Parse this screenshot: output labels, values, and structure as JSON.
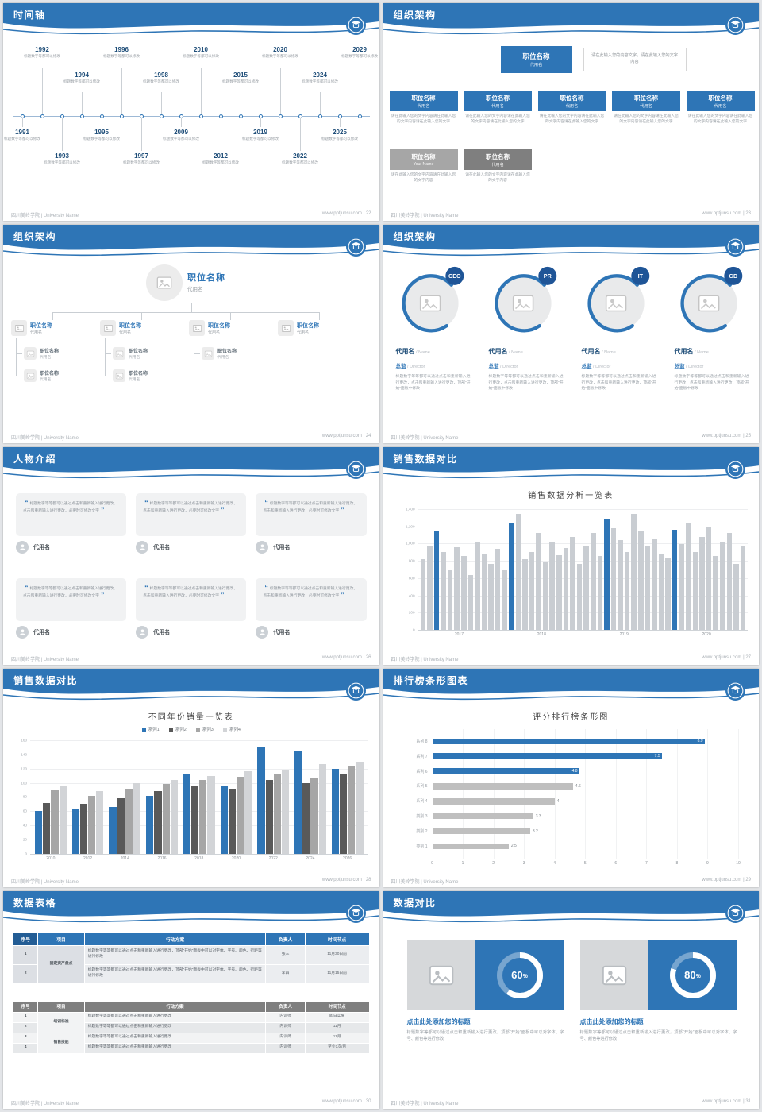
{
  "theme": {
    "accent_blue": "#2E75B6",
    "deep_blue": "#1F4E79",
    "badge_blue": "#1F5597",
    "bar_gray": "#C9CDD2",
    "mid_gray": "#7F7F7F",
    "soft_gray": "#A6A6A6",
    "dark_gray": "#595959",
    "light_gray": "#BFBFBF"
  },
  "footer": {
    "school": "四川美岭学院 | University Name",
    "site": "www.pptjunsu.com",
    "sep": " | "
  },
  "slides": {
    "timeline": {
      "title": "时间轴",
      "page": "22",
      "caption": "标题数字等都可以修改",
      "top_years": [
        "1992",
        "1994",
        "1996",
        "1998",
        "2010",
        "2015",
        "2020",
        "2024",
        "2029"
      ],
      "bottom_years": [
        "1991",
        "1993",
        "1995",
        "1997",
        "2009",
        "2012",
        "2019",
        "2022",
        "2025"
      ]
    },
    "org_boxes": {
      "title": "组织架构",
      "page": "23",
      "root": {
        "name": "职位名称",
        "sub": "代用名"
      },
      "root_note": "请在此输入您的内容文字，请在此输入您的文字内容",
      "columns": [
        {
          "name": "职位名称",
          "sub": "代用名"
        },
        {
          "name": "职位名称",
          "sub": "代用名"
        },
        {
          "name": "职位名称",
          "sub": "代用名"
        },
        {
          "name": "职位名称",
          "sub": "代用名"
        },
        {
          "name": "职位名称",
          "sub": "代用名"
        }
      ],
      "column_note": "请在此输入您的文字内容请在此输入您的文字内容请在此输入您的文字",
      "extras": [
        {
          "name": "职位名称",
          "sub": "Your Name",
          "color": "#A6A6A6"
        },
        {
          "name": "职位名称",
          "sub": "代用名",
          "color": "#7F7F7F"
        }
      ],
      "extra_note": "请在此输入您的文字内容请在此输入您的文字内容"
    },
    "org_tree": {
      "title": "组织架构",
      "page": "24",
      "root": {
        "name": "职位名称",
        "sub": "代用名"
      },
      "branches": [
        {
          "name": "职位名称",
          "sub": "代用名",
          "children": [
            {
              "name": "职位名称",
              "sub": "代用名"
            },
            {
              "name": "职位名称",
              "sub": "代用名"
            }
          ]
        },
        {
          "name": "职位名称",
          "sub": "代用名",
          "children": [
            {
              "name": "职位名称",
              "sub": "代用名"
            },
            {
              "name": "职位名称",
              "sub": "代用名"
            }
          ]
        },
        {
          "name": "职位名称",
          "sub": "代用名",
          "children": [
            {
              "name": "职位名称",
              "sub": "代用名"
            }
          ]
        },
        {
          "name": "职位名称",
          "sub": "代用名",
          "children": []
        }
      ]
    },
    "org_members": {
      "title": "组织架构",
      "page": "25",
      "members": [
        {
          "badge": "CEO",
          "name": "代用名",
          "name_en": "/ Name",
          "role": "总监",
          "role_en": "/ Director",
          "desc": "标题数字等等都可以通过点击和重新输入进行更改，点击和重新输入进行更改，顶部“开始”面板中修改"
        },
        {
          "badge": "PR",
          "name": "代用名",
          "name_en": "/ Name",
          "role": "总监",
          "role_en": "/ Director",
          "desc": "标题数字等等都可以通过点击和重新输入进行更改，点击和重新输入进行更改，顶部“开始”面板中修改"
        },
        {
          "badge": "IT",
          "name": "代用名",
          "name_en": "/ Name",
          "role": "总监",
          "role_en": "/ Director",
          "desc": "标题数字等等都可以通过点击和重新输入进行更改，点击和重新输入进行更改，顶部“开始”面板中修改"
        },
        {
          "badge": "GD",
          "name": "代用名",
          "name_en": "/ Name",
          "role": "总监",
          "role_en": "/ Director",
          "desc": "标题数字等等都可以通过点击和重新输入进行更改，点击和重新输入进行更改，顶部“开始”面板中修改"
        }
      ]
    },
    "people": {
      "title": "人物介绍",
      "page": "26",
      "cards": [
        {
          "quote": "标题数字等等都可以通过点击和重新输入进行更改，点击和重新输入进行更改，必要时可修改文字",
          "name": "代用名"
        },
        {
          "quote": "标题数字等等都可以通过点击和重新输入进行更改，点击和重新输入进行更改，必要时可修改文字",
          "name": "代用名"
        },
        {
          "quote": "标题数字等等都可以通过点击和重新输入进行更改，点击和重新输入进行更改，必要时可修改文字",
          "name": "代用名"
        },
        {
          "quote": "标题数字等等都可以通过点击和重新输入进行更改，点击和重新输入进行更改，必要时可修改文字",
          "name": "代用名"
        },
        {
          "quote": "标题数字等等都可以通过点击和重新输入进行更改，点击和重新输入进行更改，必要时可修改文字",
          "name": "代用名"
        },
        {
          "quote": "标题数字等等都可以通过点击和重新输入进行更改，点击和重新输入进行更改，必要时可修改文字",
          "name": "代用名"
        }
      ]
    },
    "sales_monthly": {
      "title": "销售数据对比",
      "page": "27"
    },
    "sales_yearly": {
      "title": "销售数据对比",
      "page": "28"
    },
    "ranking": {
      "title": "排行榜条形图表",
      "page": "29"
    },
    "tables": {
      "title": "数据表格",
      "page": "30",
      "table1": {
        "headers": [
          "序号",
          "项目",
          "行动方案",
          "负责人",
          "时间节点"
        ],
        "rows": [
          [
            "1",
            "固定资产盘点",
            "标题数字等等都可以通过点击和重新输入进行更改，顶部“开始”面板中可以对字体、字号、颜色、行距等进行修改",
            "张三",
            "11月30日前"
          ],
          [
            "2",
            "",
            "标题数字等等都可以通过点击和重新输入进行更改，顶部“开始”面板中可以对字体、字号、颜色、行距等进行修改",
            "李四",
            "11月15日前"
          ]
        ]
      },
      "table2": {
        "headers": [
          "序号",
          "项目",
          "行动方案",
          "负责人",
          "时间节点"
        ],
        "rows": [
          [
            "1",
            "培训标准",
            "标题数字等等都可以通过点击和重新输入进行更改",
            "内训师",
            "即日实施"
          ],
          [
            "2",
            "",
            "标题数字等等都可以通过点击和重新输入进行更改",
            "内训师",
            "11月"
          ],
          [
            "3",
            "销售技能",
            "标题数字等等都可以通过点击和重新输入进行更改",
            "内训师",
            "11月"
          ],
          [
            "4",
            "",
            "标题数字等等都可以通过点击和重新输入进行更改",
            "内训师",
            "至少1次/月"
          ]
        ]
      }
    },
    "compare": {
      "title": "数据对比",
      "page": "31",
      "items": [
        {
          "percent": 60,
          "unit": "%",
          "heading": "点击此处添加您的标题",
          "desc": "标题数字等都可以通过点击和重新输入进行更改，顶部“开始”面板中可以对字体、字号、颜色等进行修改"
        },
        {
          "percent": 80,
          "unit": "%",
          "heading": "点击此处添加您的标题",
          "desc": "标题数字等都可以通过点击和重新输入进行更改，顶部“开始”面板中可以对字体、字号、颜色等进行修改"
        }
      ]
    }
  },
  "chart_data": [
    {
      "id": "monthly-sales",
      "type": "bar",
      "title": "销售数据分析一览表",
      "x_groups": [
        "2017",
        "2018",
        "2019",
        "2020"
      ],
      "ylim": [
        0,
        1400
      ],
      "yticks": [
        0,
        200,
        400,
        600,
        800,
        1000,
        1200,
        1400
      ],
      "ytick_labels": [
        "0",
        "200",
        "400",
        "600",
        "800",
        "1,000",
        "1,200",
        "1,400"
      ],
      "values": [
        820,
        980,
        1150,
        900,
        700,
        960,
        860,
        640,
        1020,
        880,
        760,
        940,
        700,
        1230,
        1340,
        820,
        900,
        1120,
        780,
        1010,
        870,
        950,
        1080,
        760,
        980,
        1120,
        860,
        1290,
        1180,
        1040,
        900,
        1340,
        1150,
        980,
        1060,
        880,
        840,
        1160,
        990,
        1230,
        900,
        1080,
        1190,
        860,
        1020,
        1120,
        760,
        980
      ],
      "highlight_indexes": [
        2,
        13,
        27,
        37
      ],
      "bar_color": "#C9CDD2",
      "highlight_color": "#2E75B6"
    },
    {
      "id": "yearly-sales",
      "type": "bar",
      "title": "不同年份销量一览表",
      "categories": [
        "2010",
        "2012",
        "2014",
        "2016",
        "2018",
        "2020",
        "2022",
        "2024",
        "2026"
      ],
      "series": [
        {
          "name": "系列1",
          "color": "#2E75B6",
          "values": [
            60,
            62,
            66,
            82,
            112,
            96,
            150,
            146,
            120
          ]
        },
        {
          "name": "系列2",
          "color": "#595959",
          "values": [
            72,
            70,
            78,
            88,
            96,
            92,
            104,
            100,
            112
          ]
        },
        {
          "name": "系列3",
          "color": "#A6A6A6",
          "values": [
            90,
            82,
            92,
            98,
            104,
            108,
            112,
            106,
            124
          ]
        },
        {
          "name": "系列4",
          "color": "#D2D4D7",
          "values": [
            96,
            88,
            100,
            104,
            110,
            116,
            118,
            126,
            130
          ]
        }
      ],
      "ylim": [
        0,
        160
      ],
      "yticks": [
        0,
        20,
        40,
        60,
        80,
        100,
        120,
        140,
        160
      ],
      "ytick_labels": [
        "0",
        "20",
        "40",
        "60",
        "80",
        "100",
        "120",
        "140",
        "160"
      ],
      "legend_position": "top"
    },
    {
      "id": "score-ranking",
      "type": "bar-horizontal",
      "title": "评分排行榜条形图",
      "categories": [
        "系列 8",
        "系列 7",
        "系列 6",
        "系列 5",
        "系列 4",
        "类别 3",
        "类别 2",
        "类别 1"
      ],
      "values": [
        8.9,
        7.5,
        4.8,
        4.6,
        4,
        3.3,
        3.2,
        2.5
      ],
      "value_labels": [
        "8.9",
        "7.5",
        "4.8",
        "4.6",
        "4",
        "3.3",
        "3.2",
        "2.5"
      ],
      "colors": [
        "#2E75B6",
        "#2E75B6",
        "#2E75B6",
        "#BFBFBF",
        "#BFBFBF",
        "#BFBFBF",
        "#BFBFBF",
        "#BFBFBF"
      ],
      "xlim": [
        0,
        10
      ],
      "xticks": [
        0,
        1,
        2,
        3,
        4,
        5,
        6,
        7,
        8,
        9,
        10
      ]
    },
    {
      "id": "percent-left",
      "type": "donut",
      "value": 60,
      "label": "60%"
    },
    {
      "id": "percent-right",
      "type": "donut",
      "value": 80,
      "label": "80%"
    }
  ]
}
